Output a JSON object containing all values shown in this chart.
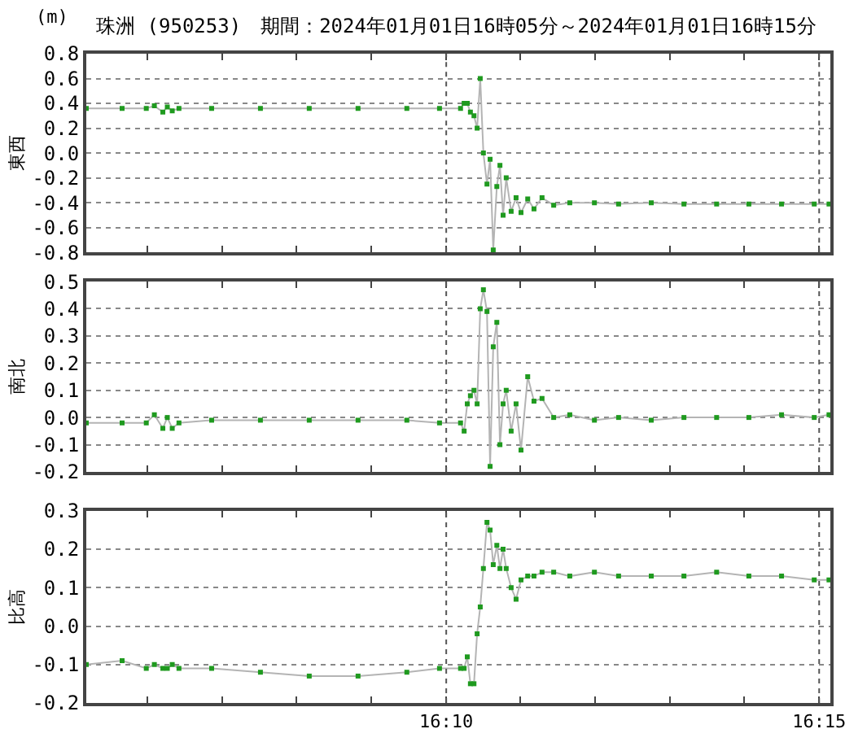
{
  "chart_data": [
    {
      "type": "line",
      "title": "珠洲 (950253)　期間：2024年01月01日16時05分～2024年01月01日16時15分",
      "annotations": [
        "(m)"
      ],
      "ylabel": "東西",
      "color": "#1f9a1f",
      "marker": "square",
      "line_style": "solid",
      "grid": "y",
      "tick_labels": "y",
      "x": [
        16.0863,
        16.0943,
        16.0997,
        16.1015,
        16.1034,
        16.1044,
        16.1055,
        16.107,
        16.1143,
        16.1252,
        16.1361,
        16.147,
        16.1579,
        16.1652,
        16.1699,
        16.1707,
        16.1714,
        16.1721,
        16.1729,
        16.1736,
        16.1743,
        16.175,
        16.1758,
        16.1765,
        16.1772,
        16.178,
        16.1787,
        16.1794,
        16.1801,
        16.1812,
        16.1823,
        16.1834,
        16.1849,
        16.1863,
        16.1881,
        16.1907,
        16.1943,
        16.1998,
        16.2052,
        16.2125,
        16.2198,
        16.2271,
        16.2343,
        16.2416,
        16.2489,
        16.2522
      ],
      "values": [
        0.36,
        0.36,
        0.36,
        0.38,
        0.33,
        0.37,
        0.34,
        0.36,
        0.36,
        0.36,
        0.36,
        0.36,
        0.36,
        0.36,
        0.36,
        0.4,
        0.4,
        0.33,
        0.3,
        0.2,
        0.6,
        0.0,
        -0.25,
        -0.05,
        -0.78,
        -0.27,
        -0.1,
        -0.5,
        -0.2,
        -0.47,
        -0.36,
        -0.48,
        -0.37,
        -0.45,
        -0.36,
        -0.42,
        -0.4,
        -0.4,
        -0.41,
        -0.4,
        -0.41,
        -0.41,
        -0.41,
        -0.41,
        -0.41,
        -0.41
      ],
      "xlim": [
        16.0863,
        16.2525
      ],
      "xticks": [
        {
          "value": 16.1,
          "label": null
        },
        {
          "value": 16.1167,
          "label": null
        },
        {
          "value": 16.1333,
          "label": null
        },
        {
          "value": 16.15,
          "label": null
        },
        {
          "value": 16.1667,
          "label": null
        },
        {
          "value": 16.1833,
          "label": null
        },
        {
          "value": 16.2,
          "label": null
        },
        {
          "value": 16.2167,
          "label": null
        },
        {
          "value": 16.2333,
          "label": null
        },
        {
          "value": 16.25,
          "label": null
        }
      ],
      "ylim": [
        -0.8,
        0.8
      ],
      "yticks": [
        {
          "value": -0.8,
          "label": "-0.8"
        },
        {
          "value": -0.6,
          "label": "-0.6"
        },
        {
          "value": -0.4,
          "label": "-0.4"
        },
        {
          "value": -0.2,
          "label": "-0.2"
        },
        {
          "value": 0,
          "label": "0.0"
        },
        {
          "value": 0.2,
          "label": "0.2"
        },
        {
          "value": 0.4,
          "label": "0.4"
        },
        {
          "value": 0.6,
          "label": "0.6"
        },
        {
          "value": 0.8,
          "label": "0.8"
        }
      ],
      "ref_lines": [
        {
          "axis": "x",
          "value": 16.1667,
          "line_style": "dotted"
        },
        {
          "axis": "x",
          "value": 16.25,
          "line_style": "dotted"
        }
      ]
    },
    {
      "type": "line",
      "ylabel": "南北",
      "color": "#1f9a1f",
      "marker": "square",
      "line_style": "solid",
      "grid": "y",
      "tick_labels": "y",
      "x": [
        16.0863,
        16.0943,
        16.0997,
        16.1015,
        16.1034,
        16.1044,
        16.1055,
        16.107,
        16.1143,
        16.1252,
        16.1361,
        16.147,
        16.1579,
        16.1652,
        16.1699,
        16.1707,
        16.1714,
        16.1721,
        16.1729,
        16.1736,
        16.1743,
        16.175,
        16.1758,
        16.1765,
        16.1772,
        16.178,
        16.1787,
        16.1794,
        16.1801,
        16.1812,
        16.1823,
        16.1834,
        16.1849,
        16.1863,
        16.1881,
        16.1907,
        16.1943,
        16.1998,
        16.2052,
        16.2125,
        16.2198,
        16.2271,
        16.2343,
        16.2416,
        16.2489,
        16.2522
      ],
      "values": [
        -0.02,
        -0.02,
        -0.02,
        0.01,
        -0.04,
        0.0,
        -0.04,
        -0.02,
        -0.01,
        -0.01,
        -0.01,
        -0.01,
        -0.01,
        -0.02,
        -0.02,
        -0.05,
        0.05,
        0.08,
        0.1,
        0.05,
        0.4,
        0.47,
        0.39,
        -0.18,
        0.26,
        0.35,
        -0.1,
        0.05,
        0.1,
        -0.05,
        0.05,
        -0.12,
        0.15,
        0.06,
        0.07,
        0.0,
        0.01,
        -0.01,
        0.0,
        -0.01,
        0.0,
        0.0,
        0.0,
        0.01,
        0.0,
        0.01
      ],
      "xlim": [
        16.0863,
        16.2525
      ],
      "xticks": [
        {
          "value": 16.1,
          "label": null
        },
        {
          "value": 16.1167,
          "label": null
        },
        {
          "value": 16.1333,
          "label": null
        },
        {
          "value": 16.15,
          "label": null
        },
        {
          "value": 16.1667,
          "label": null
        },
        {
          "value": 16.1833,
          "label": null
        },
        {
          "value": 16.2,
          "label": null
        },
        {
          "value": 16.2167,
          "label": null
        },
        {
          "value": 16.2333,
          "label": null
        },
        {
          "value": 16.25,
          "label": null
        }
      ],
      "ylim": [
        -0.2,
        0.5
      ],
      "yticks": [
        {
          "value": -0.2,
          "label": "-0.2"
        },
        {
          "value": -0.1,
          "label": "-0.1"
        },
        {
          "value": 0,
          "label": "0.0"
        },
        {
          "value": 0.1,
          "label": "0.1"
        },
        {
          "value": 0.2,
          "label": "0.2"
        },
        {
          "value": 0.3,
          "label": "0.3"
        },
        {
          "value": 0.4,
          "label": "0.4"
        },
        {
          "value": 0.5,
          "label": "0.5"
        }
      ],
      "ref_lines": [
        {
          "axis": "x",
          "value": 16.1667,
          "line_style": "dotted"
        },
        {
          "axis": "x",
          "value": 16.25,
          "line_style": "dotted"
        }
      ]
    },
    {
      "type": "line",
      "ylabel": "比高",
      "color": "#1f9a1f",
      "marker": "square",
      "line_style": "solid",
      "grid": "y",
      "x": [
        16.0863,
        16.0943,
        16.0997,
        16.1015,
        16.1034,
        16.1044,
        16.1055,
        16.107,
        16.1143,
        16.1252,
        16.1361,
        16.147,
        16.1579,
        16.1652,
        16.1699,
        16.1707,
        16.1714,
        16.1721,
        16.1729,
        16.1736,
        16.1743,
        16.175,
        16.1758,
        16.1765,
        16.1772,
        16.178,
        16.1787,
        16.1794,
        16.1801,
        16.1812,
        16.1823,
        16.1834,
        16.1849,
        16.1863,
        16.1881,
        16.1907,
        16.1943,
        16.1998,
        16.2052,
        16.2125,
        16.2198,
        16.2271,
        16.2343,
        16.2416,
        16.2489,
        16.2522
      ],
      "values": [
        -0.1,
        -0.09,
        -0.11,
        -0.1,
        -0.11,
        -0.11,
        -0.1,
        -0.11,
        -0.11,
        -0.12,
        -0.13,
        -0.13,
        -0.12,
        -0.11,
        -0.11,
        -0.11,
        -0.08,
        -0.15,
        -0.15,
        -0.02,
        0.05,
        0.15,
        0.27,
        0.25,
        0.16,
        0.21,
        0.15,
        0.2,
        0.15,
        0.1,
        0.07,
        0.12,
        0.13,
        0.13,
        0.14,
        0.14,
        0.13,
        0.14,
        0.13,
        0.13,
        0.13,
        0.14,
        0.13,
        0.13,
        0.12,
        0.12
      ],
      "xlim": [
        16.0863,
        16.2525
      ],
      "xticks": [
        {
          "value": 16.1,
          "label": null
        },
        {
          "value": 16.1167,
          "label": null
        },
        {
          "value": 16.1333,
          "label": null
        },
        {
          "value": 16.15,
          "label": null
        },
        {
          "value": 16.1667,
          "label": "16:10"
        },
        {
          "value": 16.1833,
          "label": null
        },
        {
          "value": 16.2,
          "label": null
        },
        {
          "value": 16.2167,
          "label": null
        },
        {
          "value": 16.2333,
          "label": null
        },
        {
          "value": 16.25,
          "label": "16:15"
        }
      ],
      "ylim": [
        -0.2,
        0.3
      ],
      "yticks": [
        {
          "value": -0.2,
          "label": "-0.2"
        },
        {
          "value": -0.1,
          "label": "-0.1"
        },
        {
          "value": 0,
          "label": "0.0"
        },
        {
          "value": 0.1,
          "label": "0.1"
        },
        {
          "value": 0.2,
          "label": "0.2"
        },
        {
          "value": 0.3,
          "label": "0.3"
        }
      ],
      "ref_lines": [
        {
          "axis": "x",
          "value": 16.1667,
          "line_style": "dotted"
        },
        {
          "axis": "x",
          "value": 16.25,
          "line_style": "dotted"
        }
      ]
    }
  ]
}
